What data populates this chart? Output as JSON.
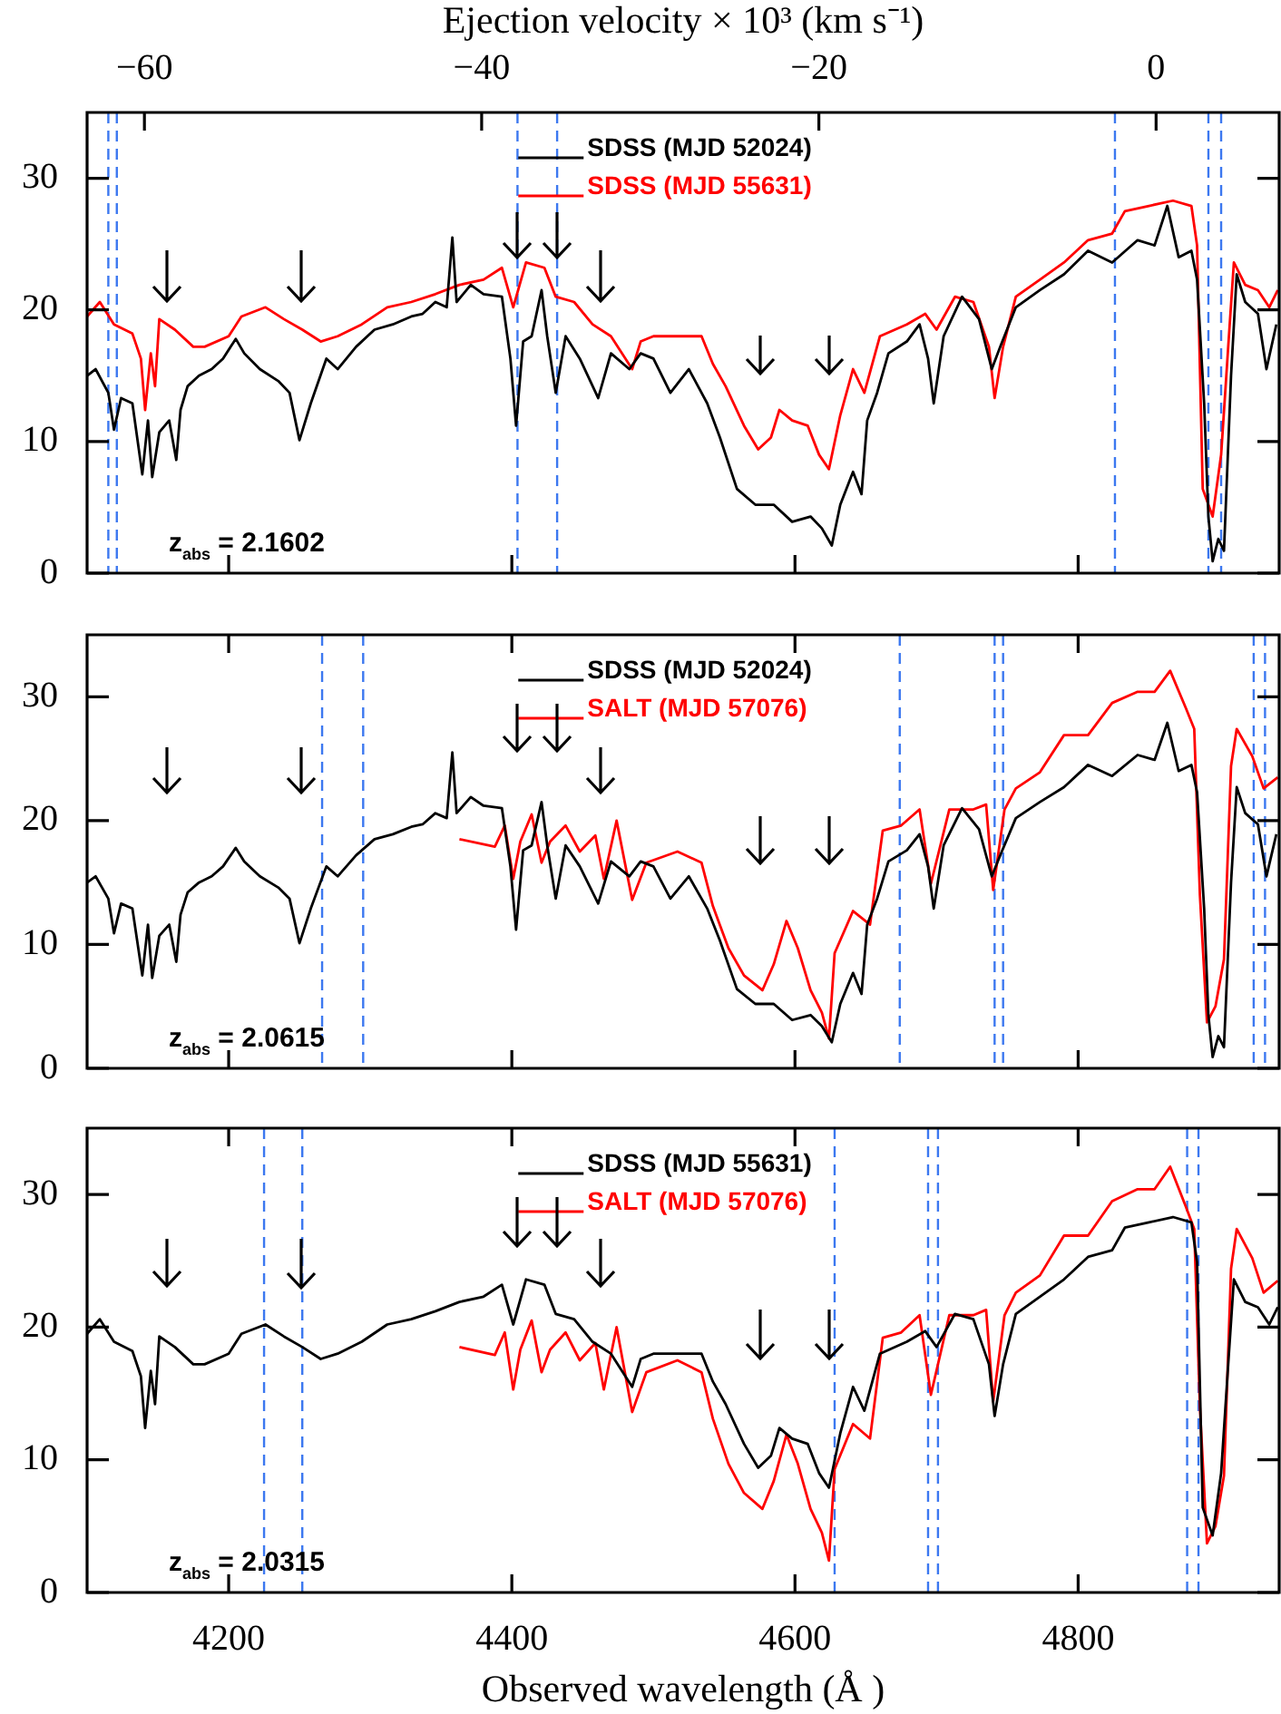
{
  "chart_data": [
    {
      "type": "line",
      "x2label": "Ejection velocity × 10³ (km s⁻¹)",
      "xlim": [
        4100,
        4942
      ],
      "xticks": [
        4200,
        4400,
        4600,
        4800
      ],
      "x2lim": [
        -63.4,
        7.3
      ],
      "x2ticks": [
        -60,
        -40,
        -20,
        0
      ],
      "ylim": [
        0,
        35
      ],
      "yticks": [
        0,
        10,
        20,
        30
      ],
      "tick_labels": "y",
      "legend": "top",
      "marker": "none",
      "line_style": "solid",
      "annotations": [
        "z$_{abs}$ = 2.1602"
      ],
      "ref_lines": [
        {
          "axis": "x",
          "value": 4115,
          "color": "#3c78f0",
          "line_style": "dashed"
        },
        {
          "axis": "x",
          "value": 4121,
          "color": "#3c78f0",
          "line_style": "dashed"
        },
        {
          "axis": "x",
          "value": 4404,
          "color": "#3c78f0",
          "line_style": "dashed"
        },
        {
          "axis": "x",
          "value": 4432,
          "color": "#3c78f0",
          "line_style": "dashed"
        },
        {
          "axis": "x",
          "value": 4826,
          "color": "#3c78f0",
          "line_style": "dashed"
        },
        {
          "axis": "x",
          "value": 4892,
          "color": "#3c78f0",
          "line_style": "dashed"
        },
        {
          "axis": "x",
          "value": 4901,
          "color": "#3c78f0",
          "line_style": "dashed"
        }
      ],
      "series": [
        {
          "name": "SDSS (MJD 52024)",
          "color": "#000000",
          "x": [
            4100,
            4106,
            4115,
            4119,
            4124,
            4132,
            4139,
            4143,
            4146,
            4151,
            4158,
            4163,
            4166,
            4171,
            4179,
            4188,
            4196,
            4205,
            4211,
            4222,
            4235,
            4243,
            4250,
            4258,
            4269,
            4277,
            4290,
            4303,
            4316,
            4329,
            4337,
            4346,
            4354,
            4358,
            4361,
            4371,
            4380,
            4393,
            4399,
            4403,
            4408,
            4414,
            4421,
            4425,
            4431,
            4438,
            4448,
            4461,
            4470,
            4483,
            4491,
            4500,
            4512,
            4525,
            4538,
            4547,
            4559,
            4572,
            4585,
            4598,
            4611,
            4619,
            4626,
            4632,
            4641,
            4647,
            4651,
            4658,
            4666,
            4679,
            4688,
            4694,
            4698,
            4705,
            4718,
            4730,
            4739,
            4745,
            4756,
            4773,
            4790,
            4807,
            4824,
            4842,
            4854,
            4863,
            4871,
            4880,
            4884,
            4889,
            4892,
            4895,
            4899,
            4903,
            4908,
            4912,
            4918,
            4927,
            4933,
            4940
          ],
          "values": [
            15.0,
            15.5,
            13.7,
            10.9,
            13.3,
            12.9,
            7.5,
            11.6,
            7.3,
            10.7,
            11.6,
            8.6,
            12.4,
            14.2,
            15.0,
            15.5,
            16.3,
            17.8,
            16.7,
            15.5,
            14.6,
            13.7,
            10.1,
            12.9,
            16.3,
            15.5,
            17.2,
            18.5,
            18.9,
            19.5,
            19.7,
            20.6,
            20.2,
            25.5,
            20.6,
            21.9,
            21.2,
            21.0,
            16.3,
            11.2,
            17.6,
            18.0,
            21.5,
            18.0,
            13.7,
            18.0,
            16.3,
            13.3,
            16.7,
            15.5,
            16.7,
            16.3,
            13.7,
            15.5,
            12.9,
            10.3,
            6.4,
            5.2,
            5.2,
            3.9,
            4.3,
            3.4,
            2.1,
            5.2,
            7.7,
            6.0,
            11.6,
            13.7,
            16.7,
            17.6,
            18.9,
            16.3,
            12.9,
            18.0,
            21.0,
            19.3,
            15.5,
            17.2,
            20.2,
            21.5,
            22.7,
            24.5,
            23.6,
            25.3,
            24.9,
            27.9,
            24.0,
            24.5,
            22.3,
            12.9,
            4.3,
            0.9,
            2.6,
            1.7,
            15.0,
            22.7,
            20.6,
            19.7,
            15.5,
            18.9
          ]
        },
        {
          "name": "SDSS (MJD 55631)",
          "color": "#ff0000",
          "x": [
            4100,
            4109,
            4119,
            4132,
            4138,
            4141,
            4145,
            4148,
            4151,
            4162,
            4175,
            4183,
            4200,
            4209,
            4226,
            4239,
            4252,
            4265,
            4277,
            4294,
            4312,
            4329,
            4346,
            4363,
            4380,
            4393,
            4401,
            4410,
            4423,
            4431,
            4444,
            4457,
            4470,
            4485,
            4491,
            4500,
            4517,
            4534,
            4542,
            4551,
            4564,
            4574,
            4583,
            4589,
            4598,
            4609,
            4617,
            4624,
            4632,
            4641,
            4649,
            4660,
            4679,
            4692,
            4700,
            4713,
            4726,
            4737,
            4741,
            4747,
            4756,
            4773,
            4790,
            4807,
            4824,
            4833,
            4850,
            4867,
            4880,
            4884,
            4888,
            4895,
            4901,
            4906,
            4910,
            4918,
            4927,
            4935,
            4941
          ],
          "values": [
            19.5,
            20.6,
            18.9,
            18.2,
            16.3,
            12.4,
            16.7,
            14.2,
            19.3,
            18.5,
            17.2,
            17.2,
            18.0,
            19.5,
            20.2,
            19.3,
            18.5,
            17.6,
            18.0,
            18.9,
            20.2,
            20.6,
            21.2,
            21.9,
            22.3,
            23.2,
            20.2,
            23.6,
            23.2,
            21.0,
            20.6,
            18.9,
            18.0,
            15.5,
            17.6,
            18.0,
            18.0,
            18.0,
            15.9,
            14.2,
            11.2,
            9.4,
            10.3,
            12.4,
            11.6,
            11.2,
            9.0,
            7.9,
            12.0,
            15.5,
            13.7,
            18.0,
            18.9,
            19.7,
            18.5,
            21.0,
            20.6,
            17.2,
            13.3,
            17.2,
            21.0,
            22.3,
            23.6,
            25.3,
            25.8,
            27.5,
            27.9,
            28.3,
            27.9,
            24.9,
            6.4,
            4.3,
            9.0,
            17.2,
            23.6,
            21.9,
            21.5,
            20.2,
            21.5
          ]
        }
      ]
    },
    {
      "type": "line",
      "xlim": [
        4100,
        4942
      ],
      "xticks": [
        4200,
        4400,
        4600,
        4800
      ],
      "ylim": [
        0,
        35
      ],
      "yticks": [
        0,
        10,
        20,
        30
      ],
      "tick_labels": "y",
      "legend": "top",
      "marker": "none",
      "line_style": "solid",
      "annotations": [
        "z$_{abs}$ = 2.0615"
      ],
      "ref_lines": [
        {
          "axis": "x",
          "value": 4266,
          "color": "#3c78f0",
          "line_style": "dashed"
        },
        {
          "axis": "x",
          "value": 4295,
          "color": "#3c78f0",
          "line_style": "dashed"
        },
        {
          "axis": "x",
          "value": 4674,
          "color": "#3c78f0",
          "line_style": "dashed"
        },
        {
          "axis": "x",
          "value": 4741,
          "color": "#3c78f0",
          "line_style": "dashed"
        },
        {
          "axis": "x",
          "value": 4747,
          "color": "#3c78f0",
          "line_style": "dashed"
        },
        {
          "axis": "x",
          "value": 4924,
          "color": "#3c78f0",
          "line_style": "dashed"
        },
        {
          "axis": "x",
          "value": 4932,
          "color": "#3c78f0",
          "line_style": "dashed"
        }
      ],
      "series": [
        {
          "name": "SDSS (MJD 52024)",
          "color": "#000000",
          "x": [
            4100,
            4106,
            4115,
            4119,
            4124,
            4132,
            4139,
            4143,
            4146,
            4151,
            4158,
            4163,
            4166,
            4171,
            4179,
            4188,
            4196,
            4205,
            4211,
            4222,
            4235,
            4243,
            4250,
            4258,
            4269,
            4277,
            4290,
            4303,
            4316,
            4329,
            4337,
            4346,
            4354,
            4358,
            4361,
            4371,
            4380,
            4393,
            4399,
            4403,
            4408,
            4414,
            4421,
            4425,
            4431,
            4438,
            4448,
            4461,
            4470,
            4483,
            4491,
            4500,
            4512,
            4525,
            4538,
            4547,
            4559,
            4572,
            4585,
            4598,
            4611,
            4619,
            4626,
            4632,
            4641,
            4647,
            4651,
            4658,
            4666,
            4679,
            4688,
            4694,
            4698,
            4705,
            4718,
            4730,
            4739,
            4745,
            4756,
            4773,
            4790,
            4807,
            4824,
            4842,
            4854,
            4863,
            4871,
            4880,
            4884,
            4889,
            4892,
            4895,
            4899,
            4903,
            4908,
            4912,
            4918,
            4927,
            4933,
            4940
          ],
          "values": [
            15.0,
            15.5,
            13.7,
            10.9,
            13.3,
            12.9,
            7.5,
            11.6,
            7.3,
            10.7,
            11.6,
            8.6,
            12.4,
            14.2,
            15.0,
            15.5,
            16.3,
            17.8,
            16.7,
            15.5,
            14.6,
            13.7,
            10.1,
            12.9,
            16.3,
            15.5,
            17.2,
            18.5,
            18.9,
            19.5,
            19.7,
            20.6,
            20.2,
            25.5,
            20.6,
            21.9,
            21.2,
            21.0,
            16.3,
            11.2,
            17.6,
            18.0,
            21.5,
            18.0,
            13.7,
            18.0,
            16.3,
            13.3,
            16.7,
            15.5,
            16.7,
            16.3,
            13.7,
            15.5,
            12.9,
            10.3,
            6.4,
            5.2,
            5.2,
            3.9,
            4.3,
            3.4,
            2.1,
            5.2,
            7.7,
            6.0,
            11.6,
            13.7,
            16.7,
            17.6,
            18.9,
            16.3,
            12.9,
            18.0,
            21.0,
            19.3,
            15.5,
            17.2,
            20.2,
            21.5,
            22.7,
            24.5,
            23.6,
            25.3,
            24.9,
            27.9,
            24.0,
            24.5,
            22.3,
            12.9,
            4.3,
            0.9,
            2.6,
            1.7,
            15.0,
            22.7,
            20.6,
            19.7,
            15.5,
            18.9
          ]
        },
        {
          "name": "SALT (MJD 57076)",
          "color": "#ff0000",
          "x": [
            4363,
            4388,
            4395,
            4401,
            4406,
            4414,
            4421,
            4427,
            4438,
            4448,
            4459,
            4465,
            4474,
            4485,
            4495,
            4517,
            4534,
            4542,
            4553,
            4564,
            4577,
            4585,
            4594,
            4602,
            4611,
            4619,
            4624,
            4628,
            4641,
            4653,
            4662,
            4675,
            4688,
            4696,
            4709,
            4726,
            4735,
            4740,
            4748,
            4756,
            4773,
            4790,
            4807,
            4824,
            4842,
            4854,
            4865,
            4876,
            4882,
            4886,
            4891,
            4897,
            4903,
            4908,
            4912,
            4923,
            4931,
            4941
          ],
          "values": [
            18.5,
            17.9,
            19.6,
            15.3,
            18.3,
            20.5,
            16.6,
            18.3,
            19.6,
            17.5,
            18.8,
            15.3,
            20.0,
            13.6,
            16.6,
            17.5,
            16.6,
            13.1,
            9.7,
            7.5,
            6.3,
            8.4,
            11.9,
            9.7,
            6.3,
            4.5,
            2.4,
            9.3,
            12.7,
            11.6,
            19.2,
            19.6,
            20.9,
            14.9,
            20.9,
            20.9,
            21.3,
            14.4,
            20.9,
            22.6,
            23.9,
            26.9,
            26.9,
            29.5,
            30.4,
            30.4,
            32.1,
            29.1,
            27.4,
            14.0,
            3.7,
            5.0,
            8.8,
            24.4,
            27.4,
            25.2,
            22.6,
            23.5
          ]
        }
      ]
    },
    {
      "type": "line",
      "xlabel": "Observed wavelength (Å )",
      "xlim": [
        4100,
        4942
      ],
      "xticks": [
        4200,
        4400,
        4600,
        4800
      ],
      "ylim": [
        0,
        35
      ],
      "yticks": [
        0,
        10,
        20,
        30
      ],
      "legend": "top",
      "marker": "none",
      "line_style": "solid",
      "annotations": [
        "z$_{abs}$ = 2.0315"
      ],
      "ref_lines": [
        {
          "axis": "x",
          "value": 4225,
          "color": "#3c78f0",
          "line_style": "dashed"
        },
        {
          "axis": "x",
          "value": 4252,
          "color": "#3c78f0",
          "line_style": "dashed"
        },
        {
          "axis": "x",
          "value": 4628,
          "color": "#3c78f0",
          "line_style": "dashed"
        },
        {
          "axis": "x",
          "value": 4694,
          "color": "#3c78f0",
          "line_style": "dashed"
        },
        {
          "axis": "x",
          "value": 4701,
          "color": "#3c78f0",
          "line_style": "dashed"
        },
        {
          "axis": "x",
          "value": 4877,
          "color": "#3c78f0",
          "line_style": "dashed"
        },
        {
          "axis": "x",
          "value": 4885,
          "color": "#3c78f0",
          "line_style": "dashed"
        }
      ],
      "series": [
        {
          "name": "SDSS (MJD 55631)",
          "color": "#000000",
          "x": [
            4100,
            4109,
            4119,
            4132,
            4138,
            4141,
            4145,
            4148,
            4151,
            4162,
            4175,
            4183,
            4200,
            4209,
            4226,
            4239,
            4252,
            4265,
            4277,
            4294,
            4312,
            4329,
            4346,
            4363,
            4380,
            4393,
            4401,
            4410,
            4423,
            4431,
            4444,
            4457,
            4470,
            4485,
            4491,
            4500,
            4517,
            4534,
            4542,
            4551,
            4564,
            4574,
            4583,
            4589,
            4598,
            4609,
            4617,
            4624,
            4632,
            4641,
            4649,
            4660,
            4679,
            4692,
            4700,
            4713,
            4726,
            4737,
            4741,
            4747,
            4756,
            4773,
            4790,
            4807,
            4824,
            4833,
            4850,
            4867,
            4880,
            4884,
            4888,
            4895,
            4901,
            4906,
            4910,
            4918,
            4927,
            4935,
            4941
          ],
          "values": [
            19.5,
            20.6,
            18.9,
            18.2,
            16.3,
            12.4,
            16.7,
            14.2,
            19.3,
            18.5,
            17.2,
            17.2,
            18.0,
            19.5,
            20.2,
            19.3,
            18.5,
            17.6,
            18.0,
            18.9,
            20.2,
            20.6,
            21.2,
            21.9,
            22.3,
            23.2,
            20.2,
            23.6,
            23.2,
            21.0,
            20.6,
            18.9,
            18.0,
            15.5,
            17.6,
            18.0,
            18.0,
            18.0,
            15.9,
            14.2,
            11.2,
            9.4,
            10.3,
            12.4,
            11.6,
            11.2,
            9.0,
            7.9,
            12.0,
            15.5,
            13.7,
            18.0,
            18.9,
            19.7,
            18.5,
            21.0,
            20.6,
            17.2,
            13.3,
            17.2,
            21.0,
            22.3,
            23.6,
            25.3,
            25.8,
            27.5,
            27.9,
            28.3,
            27.9,
            24.9,
            6.4,
            4.3,
            9.0,
            17.2,
            23.6,
            21.9,
            21.5,
            20.2,
            21.5
          ]
        },
        {
          "name": "SALT (MJD 57076)",
          "color": "#ff0000",
          "x": [
            4363,
            4388,
            4395,
            4401,
            4406,
            4414,
            4421,
            4427,
            4438,
            4448,
            4459,
            4465,
            4474,
            4485,
            4495,
            4517,
            4534,
            4542,
            4553,
            4564,
            4577,
            4585,
            4594,
            4602,
            4611,
            4619,
            4624,
            4628,
            4641,
            4653,
            4662,
            4675,
            4688,
            4696,
            4709,
            4726,
            4735,
            4740,
            4748,
            4756,
            4773,
            4790,
            4807,
            4824,
            4842,
            4854,
            4865,
            4876,
            4882,
            4886,
            4891,
            4897,
            4903,
            4908,
            4912,
            4923,
            4931,
            4941
          ],
          "values": [
            18.5,
            17.9,
            19.6,
            15.3,
            18.3,
            20.5,
            16.6,
            18.3,
            19.6,
            17.5,
            18.8,
            15.3,
            20.0,
            13.6,
            16.6,
            17.5,
            16.6,
            13.1,
            9.7,
            7.5,
            6.3,
            8.4,
            11.9,
            9.7,
            6.3,
            4.5,
            2.4,
            9.3,
            12.7,
            11.6,
            19.2,
            19.6,
            20.9,
            14.9,
            20.9,
            20.9,
            21.3,
            14.4,
            20.9,
            22.6,
            23.9,
            26.9,
            26.9,
            29.5,
            30.4,
            30.4,
            32.1,
            29.1,
            27.4,
            14.0,
            3.7,
            5.0,
            8.8,
            24.4,
            27.4,
            25.2,
            22.6,
            23.5
          ]
        }
      ]
    }
  ]
}
